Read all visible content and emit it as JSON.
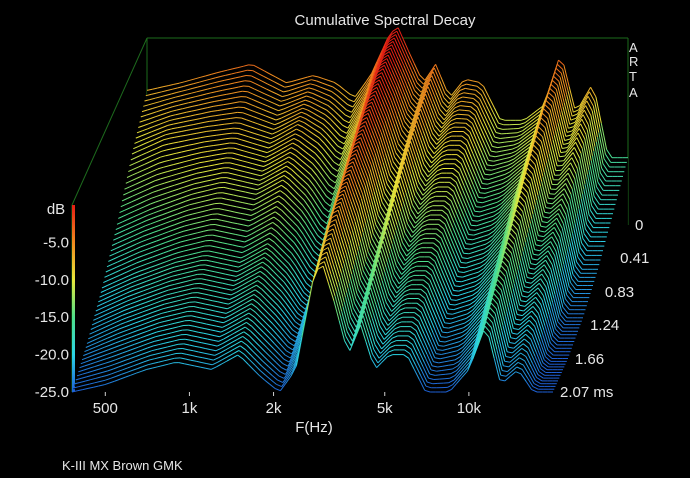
{
  "chart_data": {
    "type": "waterfall-3d",
    "title": "Cumulative Spectral Decay",
    "xlabel": "F(Hz)",
    "ylabel": "dB",
    "zlabel_unit": "ms",
    "watermark": [
      "A",
      "R",
      "T",
      "A"
    ],
    "caption": "K-III MX Brown GMK",
    "x_scale": "log",
    "xlim": [
      380,
      20000
    ],
    "ylim": [
      -25,
      0
    ],
    "zlim": [
      0,
      2.07
    ],
    "x_ticks": [
      {
        "value": 500,
        "label": "500"
      },
      {
        "value": 1000,
        "label": "1k"
      },
      {
        "value": 2000,
        "label": "2k"
      },
      {
        "value": 5000,
        "label": "5k"
      },
      {
        "value": 10000,
        "label": "10k"
      }
    ],
    "y_ticks": [
      {
        "value": -5,
        "label": "-5.0"
      },
      {
        "value": -10,
        "label": "-10.0"
      },
      {
        "value": -15,
        "label": "-15.0"
      },
      {
        "value": -20,
        "label": "-20.0"
      },
      {
        "value": -25,
        "label": "-25.0"
      }
    ],
    "time_ticks": [
      {
        "value": 0,
        "label": "0"
      },
      {
        "value": 0.41,
        "label": "0.41"
      },
      {
        "value": 0.83,
        "label": "0.83"
      },
      {
        "value": 1.24,
        "label": "1.24"
      },
      {
        "value": 1.66,
        "label": "1.66"
      },
      {
        "value": 2.07,
        "label": "2.07 ms"
      }
    ],
    "colorbar": [
      "#1e5fd6",
      "#2bd6e6",
      "#4ee08a",
      "#e8e83a",
      "#f08a1e",
      "#e61e14"
    ],
    "series": [
      {
        "time_ms": 0.0,
        "points": [
          [
            380,
            -7
          ],
          [
            500,
            -6
          ],
          [
            700,
            -4.5
          ],
          [
            900,
            -3.5
          ],
          [
            1200,
            -6
          ],
          [
            1500,
            -5
          ],
          [
            1800,
            -6
          ],
          [
            2100,
            -8
          ],
          [
            2400,
            -5
          ],
          [
            2800,
            0.5
          ],
          [
            3000,
            1.5
          ],
          [
            3300,
            -2
          ],
          [
            3700,
            -6
          ],
          [
            4100,
            -3.5
          ],
          [
            4600,
            -8
          ],
          [
            5200,
            -5.5
          ],
          [
            6000,
            -6
          ],
          [
            7000,
            -11
          ],
          [
            8500,
            -11
          ],
          [
            10000,
            -9
          ],
          [
            11500,
            -2
          ],
          [
            13000,
            -10
          ],
          [
            15000,
            -6
          ],
          [
            17000,
            -16
          ],
          [
            20000,
            -16
          ]
        ]
      },
      {
        "time_ms": 0.41,
        "points": [
          [
            380,
            -11
          ],
          [
            500,
            -9
          ],
          [
            700,
            -8
          ],
          [
            900,
            -7.5
          ],
          [
            1200,
            -9
          ],
          [
            1500,
            -7
          ],
          [
            1800,
            -9
          ],
          [
            2100,
            -12
          ],
          [
            2400,
            -8
          ],
          [
            2800,
            -0.5
          ],
          [
            3000,
            0.5
          ],
          [
            3300,
            -3
          ],
          [
            3700,
            -8
          ],
          [
            4100,
            -5
          ],
          [
            4600,
            -10
          ],
          [
            5200,
            -8
          ],
          [
            6000,
            -8
          ],
          [
            7000,
            -14
          ],
          [
            8500,
            -13
          ],
          [
            10000,
            -11
          ],
          [
            11500,
            -4
          ],
          [
            13000,
            -12
          ],
          [
            15000,
            -9
          ],
          [
            17000,
            -19
          ],
          [
            20000,
            -19
          ]
        ]
      },
      {
        "time_ms": 0.83,
        "points": [
          [
            380,
            -16
          ],
          [
            500,
            -14
          ],
          [
            700,
            -12
          ],
          [
            900,
            -11
          ],
          [
            1200,
            -12
          ],
          [
            1500,
            -10
          ],
          [
            1800,
            -13
          ],
          [
            2100,
            -17
          ],
          [
            2400,
            -12
          ],
          [
            2800,
            -2
          ],
          [
            3000,
            -1
          ],
          [
            3300,
            -5
          ],
          [
            3700,
            -11
          ],
          [
            4100,
            -7
          ],
          [
            4600,
            -13
          ],
          [
            5200,
            -11
          ],
          [
            6000,
            -11
          ],
          [
            7000,
            -17
          ],
          [
            8500,
            -16
          ],
          [
            10000,
            -13
          ],
          [
            11500,
            -7
          ],
          [
            13000,
            -15
          ],
          [
            15000,
            -13
          ],
          [
            17000,
            -22
          ],
          [
            20000,
            -22
          ]
        ]
      },
      {
        "time_ms": 1.24,
        "points": [
          [
            380,
            -20
          ],
          [
            500,
            -18
          ],
          [
            700,
            -16
          ],
          [
            900,
            -15
          ],
          [
            1200,
            -16
          ],
          [
            1500,
            -14
          ],
          [
            1800,
            -17
          ],
          [
            2100,
            -21
          ],
          [
            2400,
            -16
          ],
          [
            2800,
            -4
          ],
          [
            3000,
            -3
          ],
          [
            3300,
            -7
          ],
          [
            3700,
            -14
          ],
          [
            4100,
            -10
          ],
          [
            4600,
            -16
          ],
          [
            5200,
            -14
          ],
          [
            6000,
            -14
          ],
          [
            7000,
            -20
          ],
          [
            8500,
            -19
          ],
          [
            10000,
            -16
          ],
          [
            11500,
            -10
          ],
          [
            13000,
            -18
          ],
          [
            15000,
            -16
          ],
          [
            17000,
            -24
          ],
          [
            20000,
            -24
          ]
        ]
      },
      {
        "time_ms": 1.66,
        "points": [
          [
            380,
            -23
          ],
          [
            500,
            -21
          ],
          [
            700,
            -19
          ],
          [
            900,
            -18
          ],
          [
            1200,
            -19
          ],
          [
            1500,
            -17
          ],
          [
            1800,
            -20
          ],
          [
            2100,
            -23
          ],
          [
            2400,
            -19
          ],
          [
            2800,
            -6
          ],
          [
            3000,
            -5
          ],
          [
            3300,
            -10
          ],
          [
            3700,
            -17
          ],
          [
            4100,
            -13
          ],
          [
            4600,
            -19
          ],
          [
            5200,
            -17
          ],
          [
            6000,
            -17
          ],
          [
            7000,
            -23
          ],
          [
            8500,
            -22
          ],
          [
            10000,
            -19
          ],
          [
            11500,
            -13
          ],
          [
            13000,
            -21
          ],
          [
            15000,
            -19
          ],
          [
            17000,
            -25
          ],
          [
            20000,
            -25
          ]
        ]
      },
      {
        "time_ms": 2.07,
        "points": [
          [
            380,
            -25
          ],
          [
            500,
            -24
          ],
          [
            700,
            -22
          ],
          [
            900,
            -21
          ],
          [
            1200,
            -22
          ],
          [
            1500,
            -20
          ],
          [
            1800,
            -23
          ],
          [
            2100,
            -25
          ],
          [
            2400,
            -22
          ],
          [
            2800,
            -9
          ],
          [
            3000,
            -8
          ],
          [
            3300,
            -13
          ],
          [
            3700,
            -20
          ],
          [
            4100,
            -16
          ],
          [
            4600,
            -22
          ],
          [
            5200,
            -20
          ],
          [
            6000,
            -20
          ],
          [
            7000,
            -25
          ],
          [
            8500,
            -25
          ],
          [
            10000,
            -22
          ],
          [
            11500,
            -16
          ],
          [
            13000,
            -24
          ],
          [
            15000,
            -22
          ],
          [
            17000,
            -25
          ],
          [
            20000,
            -25
          ]
        ]
      }
    ]
  }
}
